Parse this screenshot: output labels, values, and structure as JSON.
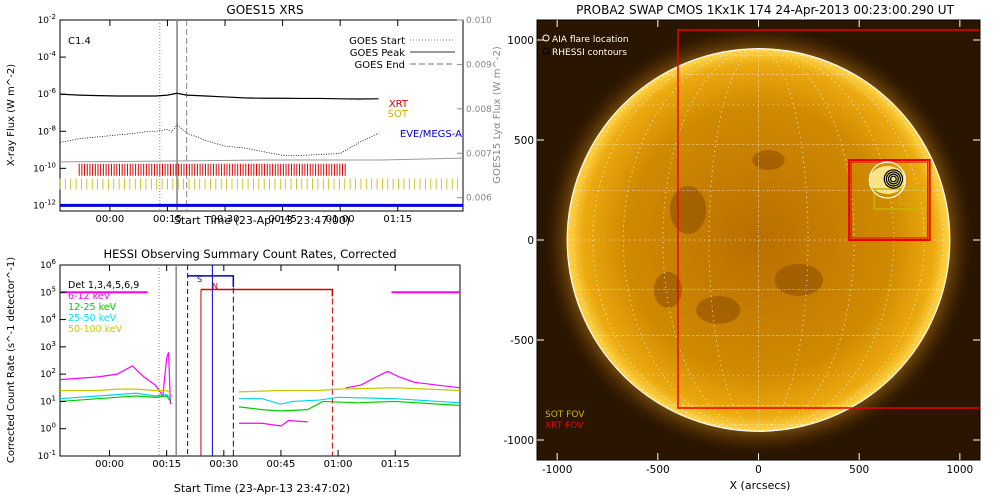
{
  "chart_data": [
    {
      "type": "line",
      "title": "GOES15 XRS",
      "xlabel": "Start Time (23-Apr-13 23:47:00)",
      "ylabel": "X-ray Flux (W m^-2)",
      "ylabel_right": "GOES15 Lyα Flux (W m^-2)",
      "annotation": "C1.4",
      "x_ticks": [
        "00:00",
        "00:15",
        "00:30",
        "00:45",
        "01:00",
        "01:15"
      ],
      "x_tick_minutes": [
        0,
        15,
        30,
        45,
        60,
        75
      ],
      "xlim_minutes": [
        -13,
        92
      ],
      "y_ticks": [
        "10^-2",
        "10^-4",
        "10^-6",
        "10^-8",
        "10^-10",
        "10^-12"
      ],
      "ylim_log10": [
        -12.3,
        -2
      ],
      "y2_ticks": [
        "0.010",
        "0.009",
        "0.008",
        "0.007",
        "0.006"
      ],
      "legend": [
        "GOES Start",
        "GOES Peak",
        "GOES End"
      ],
      "instrument_labels": [
        {
          "label": "XRT",
          "color": "#d00000"
        },
        {
          "label": "SOT",
          "color": "#c8b400"
        },
        {
          "label": "EVE/MEGS-A",
          "color": "#0000cc"
        }
      ],
      "event_times_minutes": {
        "start": 13,
        "peak": 17.5,
        "end": 20
      },
      "series": [
        {
          "name": "long",
          "log_values": [
            -6,
            -6.05,
            -6.08,
            -6.1,
            -6.1,
            -6.1,
            -6.05,
            -5.95,
            -6.05,
            -6.1,
            -6.15,
            -6.2,
            -6.22,
            -6.22,
            -6.23,
            -6.23,
            -6.25,
            -6.26,
            -6.25
          ],
          "x": [
            -13,
            -8,
            -3,
            2,
            7,
            12,
            15,
            17.5,
            20,
            25,
            30,
            35,
            40,
            45,
            50,
            55,
            60,
            65,
            70
          ]
        },
        {
          "name": "short",
          "log_values": [
            -8.6,
            -8.4,
            -8.3,
            -8.2,
            -8.1,
            -8.0,
            -8.0,
            -7.9,
            -8.05,
            -7.65,
            -8.1,
            -8.5,
            -8.8,
            -8.9,
            -9.1,
            -9.3,
            -9.3,
            -9.2,
            -8.6,
            -8.1
          ],
          "x": [
            -13,
            -8,
            -3,
            2,
            7,
            10,
            12,
            15,
            16,
            17.5,
            20,
            25,
            30,
            35,
            40,
            45,
            50,
            60,
            65,
            70
          ]
        }
      ]
    },
    {
      "type": "line",
      "title": "HESSI Observing Summary Count Rates, Corrected",
      "xlabel": "Start Time (23-Apr-13 23:47:02)",
      "ylabel": "Corrected Count Rate (s^-1 detector^-1)",
      "x_ticks": [
        "00:00",
        "00:15",
        "00:30",
        "00:45",
        "01:00",
        "01:15"
      ],
      "x_tick_minutes": [
        0,
        15,
        30,
        45,
        60,
        75
      ],
      "xlim_minutes": [
        -13,
        92
      ],
      "y_ticks": [
        "10^6",
        "10^5",
        "10^4",
        "10^3",
        "10^2",
        "10^1",
        "10^0",
        "10^-1"
      ],
      "ylim_log10": [
        -1,
        6
      ],
      "legend": [
        {
          "name": "Det 1,3,4,5,6,9",
          "color": "#000000"
        },
        {
          "name": "6-12 keV",
          "color": "#ff00ff"
        },
        {
          "name": "12-25 keV",
          "color": "#00cc00"
        },
        {
          "name": "25-50 keV",
          "color": "#00e5ee"
        },
        {
          "name": "50-100 keV",
          "color": "#cccc00"
        }
      ],
      "markers": [
        "S",
        "N"
      ],
      "series": [
        {
          "name": "6-12 keV",
          "log_values": [
            1.8,
            1.85,
            1.9,
            2.0,
            2.3,
            1.9,
            1.6,
            1.2,
            2.6,
            2.8,
            0.9
          ],
          "x": [
            -13,
            -8,
            -3,
            2,
            6,
            9,
            12,
            14,
            15,
            15.5,
            16
          ]
        },
        {
          "name": "12-25 keV",
          "log_values": [
            1.0,
            1.05,
            1.1,
            1.15,
            1.2,
            1.15,
            1.2,
            1.0
          ],
          "x": [
            -13,
            -8,
            -3,
            2,
            7,
            12,
            15,
            16
          ]
        },
        {
          "name": "25-50 keV",
          "log_values": [
            1.1,
            1.15,
            1.2,
            1.25,
            1.3,
            1.2,
            1.25,
            1.1
          ],
          "x": [
            -13,
            -8,
            -3,
            2,
            7,
            12,
            15,
            16
          ]
        },
        {
          "name": "50-100 keV",
          "log_values": [
            1.4,
            1.4,
            1.4,
            1.45,
            1.45,
            1.4,
            1.4,
            1.3
          ],
          "x": [
            -13,
            -8,
            -3,
            2,
            7,
            12,
            15,
            16
          ]
        }
      ]
    },
    {
      "type": "scatter",
      "title": "PROBA2 SWAP CMOS 1Kx1K 174 24-Apr-2013 00:23:00.290 UT",
      "xlabel": "X (arcsecs)",
      "ylabel": "",
      "x_ticks": [
        "-1000",
        "-500",
        "0",
        "500",
        "1000"
      ],
      "x_tick_values": [
        -1000,
        -500,
        0,
        500,
        1000
      ],
      "y_ticks": [
        "1000",
        "500",
        "0",
        "-500",
        "-1000"
      ],
      "y_tick_values": [
        1000,
        500,
        0,
        -500,
        -1000
      ],
      "xlim": [
        -1100,
        1100
      ],
      "ylim": [
        -1100,
        1100
      ],
      "legend": [
        {
          "name": "AIA flare location",
          "color": "#ffffff"
        },
        {
          "name": "RHESSI contours",
          "color": "#000000"
        }
      ],
      "fov_labels": [
        {
          "name": "SOT FOV",
          "color": "#c8b400"
        },
        {
          "name": "XRT FOV",
          "color": "#ee0000"
        }
      ],
      "solar_radius_arcsec": 950,
      "flare_location": [
        640,
        300
      ]
    }
  ]
}
